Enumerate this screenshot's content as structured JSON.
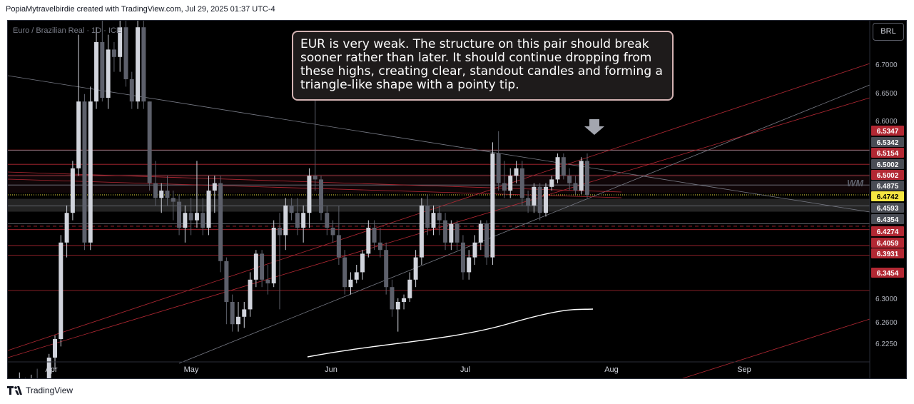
{
  "header": {
    "text": "PopiaMytravelbirdie created with TradingView.com, Jul 29, 2025 01:37 UTC-4"
  },
  "symbol": {
    "text": "Euro / Brazilian Real · 1D · ICE"
  },
  "currency_button": {
    "label": "BRL"
  },
  "annotation": {
    "text": "EUR is very weak. The structure on this pair should break sooner rather than later. It should continue dropping from these highs, creating clear, standout candles and forming a triangle-like shape with a pointy tip."
  },
  "watermark": {
    "text": "WM"
  },
  "footer": {
    "brand": "TradingView"
  },
  "chart_data": {
    "type": "candlestick",
    "title": "",
    "x_labels": [
      "Apr",
      "May",
      "Jun",
      "Jul",
      "Aug",
      "Sep"
    ],
    "y_ticks": [
      "6.7000",
      "6.6500",
      "6.6000",
      "6.3000",
      "6.2600",
      "6.2250"
    ],
    "price_labels": [
      {
        "value": "6.5347",
        "kind": "red"
      },
      {
        "value": "6.5342",
        "kind": "gray"
      },
      {
        "value": "6.5154",
        "kind": "red"
      },
      {
        "value": "6.5002",
        "kind": "gray"
      },
      {
        "value": "6.5002",
        "kind": "red"
      },
      {
        "value": "6.4875",
        "kind": "gray"
      },
      {
        "value": "6.4742",
        "kind": "current"
      },
      {
        "value": "6.4593",
        "kind": "gray"
      },
      {
        "value": "6.4354",
        "kind": "gray"
      },
      {
        "value": "6.4274",
        "kind": "red"
      },
      {
        "value": "6.4059",
        "kind": "red"
      },
      {
        "value": "6.3931",
        "kind": "red"
      },
      {
        "value": "6.3454",
        "kind": "red"
      }
    ],
    "colors": {
      "up": "#d1d4dc",
      "down": "#5d606b",
      "red_level": "#b22833",
      "gray_level": "#787b86",
      "current": "#f5e642"
    },
    "candles": [
      [
        6.205,
        6.225,
        6.195,
        6.215
      ],
      [
        6.215,
        6.235,
        6.205,
        6.222
      ],
      [
        6.222,
        6.228,
        6.198,
        6.205
      ],
      [
        6.205,
        6.232,
        6.195,
        6.225
      ],
      [
        6.225,
        6.24,
        6.19,
        6.2
      ],
      [
        6.2,
        6.22,
        6.18,
        6.205
      ],
      [
        6.205,
        6.26,
        6.195,
        6.255
      ],
      [
        6.255,
        6.285,
        6.24,
        6.28
      ],
      [
        6.28,
        6.42,
        6.27,
        6.41
      ],
      [
        6.41,
        6.46,
        6.39,
        6.45
      ],
      [
        6.45,
        6.52,
        6.44,
        6.51
      ],
      [
        6.51,
        6.69,
        6.5,
        6.6
      ],
      [
        6.6,
        6.61,
        6.4,
        6.41
      ],
      [
        6.41,
        6.62,
        6.4,
        6.6
      ],
      [
        6.6,
        6.7,
        6.59,
        6.68
      ],
      [
        6.68,
        6.72,
        6.6,
        6.605
      ],
      [
        6.605,
        6.69,
        6.59,
        6.67
      ],
      [
        6.67,
        6.68,
        6.64,
        6.66
      ],
      [
        6.66,
        6.76,
        6.64,
        6.7
      ],
      [
        6.7,
        6.73,
        6.62,
        6.63
      ],
      [
        6.63,
        6.64,
        6.59,
        6.6
      ],
      [
        6.6,
        6.72,
        6.59,
        6.7
      ],
      [
        6.7,
        6.71,
        6.59,
        6.6
      ],
      [
        6.6,
        6.6,
        6.48,
        6.49
      ],
      [
        6.49,
        6.52,
        6.46,
        6.47
      ],
      [
        6.47,
        6.49,
        6.45,
        6.48
      ],
      [
        6.48,
        6.5,
        6.46,
        6.47
      ],
      [
        6.47,
        6.48,
        6.44,
        6.465
      ],
      [
        6.465,
        6.475,
        6.42,
        6.43
      ],
      [
        6.43,
        6.46,
        6.41,
        6.45
      ],
      [
        6.45,
        6.47,
        6.42,
        6.44
      ],
      [
        6.44,
        6.52,
        6.43,
        6.45
      ],
      [
        6.45,
        6.47,
        6.42,
        6.43
      ],
      [
        6.43,
        6.5,
        6.42,
        6.48
      ],
      [
        6.48,
        6.5,
        6.45,
        6.49
      ],
      [
        6.49,
        6.5,
        6.37,
        6.385
      ],
      [
        6.385,
        6.39,
        6.3,
        6.33
      ],
      [
        6.33,
        6.34,
        6.29,
        6.3
      ],
      [
        6.3,
        6.33,
        6.29,
        6.31
      ],
      [
        6.31,
        6.33,
        6.295,
        6.32
      ],
      [
        6.32,
        6.37,
        6.31,
        6.36
      ],
      [
        6.36,
        6.4,
        6.35,
        6.395
      ],
      [
        6.395,
        6.4,
        6.35,
        6.36
      ],
      [
        6.36,
        6.38,
        6.34,
        6.355
      ],
      [
        6.355,
        6.44,
        6.35,
        6.43
      ],
      [
        6.43,
        6.45,
        6.32,
        6.42
      ],
      [
        6.42,
        6.47,
        6.4,
        6.46
      ],
      [
        6.46,
        6.47,
        6.44,
        6.45
      ],
      [
        6.45,
        6.47,
        6.42,
        6.43
      ],
      [
        6.43,
        6.46,
        6.41,
        6.45
      ],
      [
        6.45,
        6.51,
        6.43,
        6.5
      ],
      [
        6.5,
        6.61,
        6.48,
        6.495
      ],
      [
        6.495,
        6.5,
        6.44,
        6.45
      ],
      [
        6.45,
        6.46,
        6.42,
        6.43
      ],
      [
        6.43,
        6.44,
        6.41,
        6.42
      ],
      [
        6.42,
        6.46,
        6.38,
        6.39
      ],
      [
        6.39,
        6.4,
        6.34,
        6.35
      ],
      [
        6.35,
        6.37,
        6.34,
        6.36
      ],
      [
        6.36,
        6.38,
        6.355,
        6.37
      ],
      [
        6.37,
        6.4,
        6.36,
        6.395
      ],
      [
        6.395,
        6.44,
        6.39,
        6.43
      ],
      [
        6.43,
        6.44,
        6.4,
        6.41
      ],
      [
        6.41,
        6.43,
        6.39,
        6.4
      ],
      [
        6.4,
        6.41,
        6.34,
        6.35
      ],
      [
        6.35,
        6.36,
        6.31,
        6.32
      ],
      [
        6.32,
        6.335,
        6.29,
        6.33
      ],
      [
        6.33,
        6.34,
        6.32,
        6.335
      ],
      [
        6.335,
        6.37,
        6.33,
        6.36
      ],
      [
        6.36,
        6.4,
        6.35,
        6.39
      ],
      [
        6.39,
        6.47,
        6.38,
        6.46
      ],
      [
        6.46,
        6.475,
        6.42,
        6.43
      ],
      [
        6.43,
        6.46,
        6.42,
        6.45
      ],
      [
        6.45,
        6.46,
        6.42,
        6.44
      ],
      [
        6.44,
        6.45,
        6.4,
        6.41
      ],
      [
        6.41,
        6.44,
        6.4,
        6.435
      ],
      [
        6.435,
        6.44,
        6.4,
        6.41
      ],
      [
        6.41,
        6.42,
        6.36,
        6.37
      ],
      [
        6.37,
        6.4,
        6.36,
        6.39
      ],
      [
        6.39,
        6.42,
        6.38,
        6.41
      ],
      [
        6.41,
        6.44,
        6.4,
        6.435
      ],
      [
        6.435,
        6.44,
        6.38,
        6.39
      ],
      [
        6.39,
        6.545,
        6.38,
        6.53
      ],
      [
        6.53,
        6.56,
        6.48,
        6.49
      ],
      [
        6.49,
        6.52,
        6.47,
        6.48
      ],
      [
        6.48,
        6.51,
        6.47,
        6.5
      ],
      [
        6.5,
        6.52,
        6.49,
        6.51
      ],
      [
        6.51,
        6.52,
        6.46,
        6.47
      ],
      [
        6.47,
        6.48,
        6.45,
        6.46
      ],
      [
        6.46,
        6.49,
        6.45,
        6.485
      ],
      [
        6.485,
        6.49,
        6.44,
        6.45
      ],
      [
        6.45,
        6.49,
        6.445,
        6.485
      ],
      [
        6.485,
        6.5,
        6.48,
        6.495
      ],
      [
        6.495,
        6.53,
        6.49,
        6.525
      ],
      [
        6.525,
        6.53,
        6.495,
        6.5
      ],
      [
        6.5,
        6.51,
        6.48,
        6.49
      ],
      [
        6.49,
        6.5,
        6.475,
        6.48
      ],
      [
        6.48,
        6.525,
        6.475,
        6.52
      ],
      [
        6.52,
        6.53,
        6.47,
        6.474
      ]
    ]
  }
}
